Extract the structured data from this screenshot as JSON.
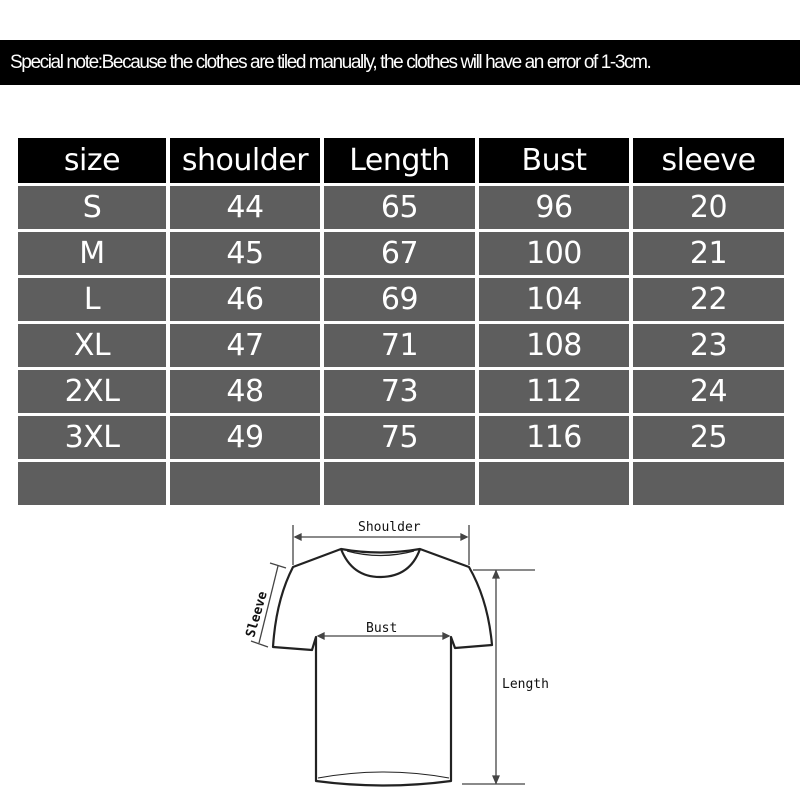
{
  "note": "Special note:Because the clothes are tiled manually, the clothes will have an error of 1-3cm.",
  "table": {
    "headers": [
      "size",
      "shoulder",
      "Length",
      "Bust",
      "sleeve"
    ],
    "rows": [
      [
        "S",
        "44",
        "65",
        "96",
        "20"
      ],
      [
        "M",
        "45",
        "67",
        "100",
        "21"
      ],
      [
        "L",
        "46",
        "69",
        "104",
        "22"
      ],
      [
        "XL",
        "47",
        "71",
        "108",
        "23"
      ],
      [
        "2XL",
        "48",
        "73",
        "112",
        "24"
      ],
      [
        "3XL",
        "49",
        "75",
        "116",
        "25"
      ],
      [
        "",
        "",
        "",
        "",
        ""
      ]
    ]
  },
  "diagram": {
    "shoulder_label": "Shoulder",
    "bust_label": "Bust",
    "length_label": "Length",
    "sleeve_label": "Sleeve"
  },
  "colors": {
    "header_bg": "#000000",
    "row_bg": "#5e5e5e",
    "text": "#ffffff"
  }
}
